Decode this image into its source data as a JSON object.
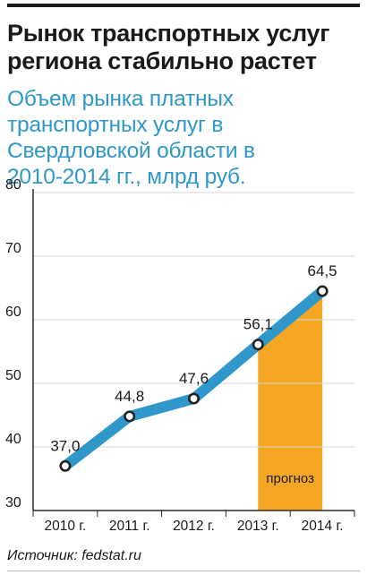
{
  "header": {
    "title": "Рынок транспортных услуг\nрегиона стабильно растет",
    "subtitle": "Объем рынка платных\nтранспортных услуг в\nСвердловской области в\n2010-2014 гг., млрд руб."
  },
  "footer": {
    "source": "Источник: fedstat.ru"
  },
  "colors": {
    "line": "#2f97c9",
    "forecast": "#f5a623",
    "text": "#1a1a1a",
    "marker_fill": "#ffffff",
    "marker_stroke": "#222222"
  },
  "chart_data": {
    "type": "line",
    "title": "",
    "xlabel": "",
    "ylabel": "",
    "categories": [
      "2010 г.",
      "2011 г.",
      "2012 г.",
      "2013 г.",
      "2014 г."
    ],
    "values": [
      37.0,
      44.8,
      47.6,
      56.1,
      64.5
    ],
    "data_labels": [
      "37,0",
      "44,8",
      "47,6",
      "56,1",
      "64,5"
    ],
    "ylim": [
      30,
      80
    ],
    "yticks": [
      30,
      40,
      50,
      60,
      70,
      80
    ],
    "grid": true,
    "forecast": {
      "from_category": "2013 г.",
      "to_category": "2014 г.",
      "label": "прогноз"
    }
  }
}
